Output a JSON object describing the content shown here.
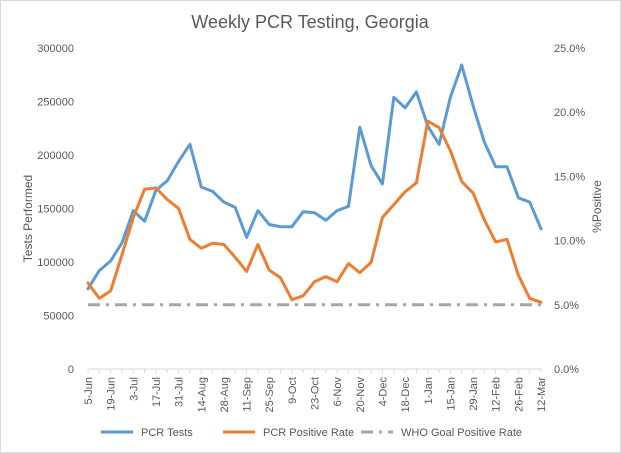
{
  "chart_data": {
    "type": "line",
    "title": "Weekly PCR Testing, Georgia",
    "ylabel_left": "Tests Performed",
    "ylabel_right": "%Positive",
    "ylim_left": [
      0,
      300000
    ],
    "ylim_right": [
      0.0,
      25.0
    ],
    "yticks_left": [
      "0",
      "50000",
      "100000",
      "150000",
      "200000",
      "250000",
      "300000"
    ],
    "yticks_right": [
      "0.0%",
      "5.0%",
      "10.0%",
      "15.0%",
      "20.0%",
      "25.0%"
    ],
    "x_tick_labels": [
      "5-Jun",
      "19-Jun",
      "3-Jul",
      "17-Jul",
      "31-Jul",
      "14-Aug",
      "28-Aug",
      "11-Sep",
      "25-Sep",
      "9-Oct",
      "23-Oct",
      "6-Nov",
      "20-Nov",
      "4-Dec",
      "18-Dec",
      "1-Jan",
      "15-Jan",
      "29-Jan",
      "12-Feb",
      "26-Feb",
      "12-Mar"
    ],
    "series": [
      {
        "name": "PCR Tests",
        "axis": "left",
        "color": "#5B9BD5",
        "values": [
          75000,
          92000,
          101000,
          118000,
          148000,
          138000,
          167000,
          176000,
          194000,
          210000,
          170000,
          166000,
          156000,
          151000,
          123000,
          148000,
          135000,
          133000,
          133000,
          147000,
          146000,
          139000,
          148000,
          152000,
          226000,
          190000,
          173000,
          254000,
          244000,
          259000,
          227000,
          210000,
          254000,
          284000,
          246000,
          212000,
          189000,
          189000,
          160000,
          156000,
          131000
        ]
      },
      {
        "name": "PCR Positive Rate",
        "axis": "right",
        "color": "#ED7D31",
        "values": [
          6.7,
          5.5,
          6.1,
          8.9,
          11.8,
          14.0,
          14.1,
          13.2,
          12.5,
          10.1,
          9.4,
          9.8,
          9.7,
          8.7,
          7.6,
          9.7,
          7.7,
          7.1,
          5.4,
          5.7,
          6.8,
          7.2,
          6.8,
          8.2,
          7.5,
          8.3,
          11.8,
          12.8,
          13.8,
          14.5,
          19.3,
          18.8,
          17.0,
          14.6,
          13.7,
          11.6,
          9.9,
          10.1,
          7.3,
          5.5,
          5.2
        ]
      },
      {
        "name": "WHO Goal Positive Rate",
        "axis": "right",
        "color": "#A5A5A5",
        "style": "dash-dot",
        "values": [
          5.0,
          5.0,
          5.0,
          5.0,
          5.0,
          5.0,
          5.0,
          5.0,
          5.0,
          5.0,
          5.0,
          5.0,
          5.0,
          5.0,
          5.0,
          5.0,
          5.0,
          5.0,
          5.0,
          5.0,
          5.0,
          5.0,
          5.0,
          5.0,
          5.0,
          5.0,
          5.0,
          5.0,
          5.0,
          5.0,
          5.0,
          5.0,
          5.0,
          5.0,
          5.0,
          5.0,
          5.0,
          5.0,
          5.0,
          5.0,
          5.0
        ]
      }
    ],
    "legend_position": "bottom",
    "grid": false
  }
}
